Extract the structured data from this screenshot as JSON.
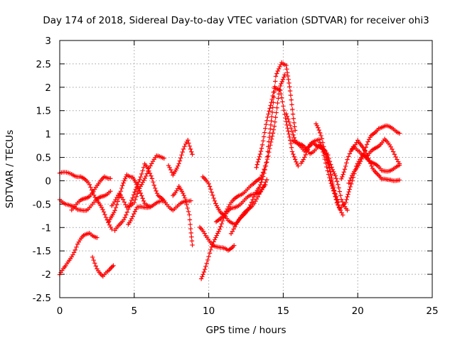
{
  "chart_data": {
    "type": "scatter",
    "title": "Day 174 of 2018, Sidereal Day-to-day VTEC variation (SDTVAR) for receiver ohi3",
    "xlabel": "GPS time / hours",
    "ylabel": "SDTVAR / TECUs",
    "xlim": [
      0,
      25
    ],
    "ylim": [
      -2.5,
      3
    ],
    "xticks": [
      0,
      5,
      10,
      15,
      20,
      25
    ],
    "yticks": [
      -2.5,
      -2,
      -1.5,
      -1,
      -0.5,
      0,
      0.5,
      1,
      1.5,
      2,
      2.5,
      3
    ],
    "grid": true,
    "marker": "plus",
    "color": "#ff0000",
    "series": [
      {
        "name": "track-1",
        "points": [
          [
            0.0,
            0.15
          ],
          [
            0.8,
            0.15
          ],
          [
            1.4,
            0.1
          ],
          [
            2.0,
            -0.1
          ],
          [
            2.6,
            -0.45
          ],
          [
            3.1,
            -0.8
          ],
          [
            3.5,
            -1.0
          ]
        ]
      },
      {
        "name": "track-2",
        "points": [
          [
            0.0,
            -0.4
          ],
          [
            0.6,
            -0.5
          ],
          [
            1.2,
            -0.65
          ],
          [
            1.8,
            -0.6
          ],
          [
            2.4,
            -0.45
          ],
          [
            3.0,
            -0.3
          ],
          [
            3.4,
            -0.2
          ]
        ]
      },
      {
        "name": "track-3",
        "points": [
          [
            0.0,
            -2.0
          ],
          [
            0.4,
            -1.85
          ],
          [
            0.8,
            -1.6
          ],
          [
            1.2,
            -1.35
          ],
          [
            1.6,
            -1.2
          ],
          [
            2.0,
            -1.1
          ],
          [
            2.5,
            -1.2
          ]
        ]
      },
      {
        "name": "track-4",
        "points": [
          [
            2.2,
            -1.65
          ],
          [
            2.5,
            -1.85
          ],
          [
            2.9,
            -2.05
          ],
          [
            3.3,
            -1.95
          ],
          [
            3.6,
            -1.8
          ]
        ]
      },
      {
        "name": "track-5",
        "points": [
          [
            0.8,
            -0.6
          ],
          [
            1.4,
            -0.45
          ],
          [
            2.0,
            -0.3
          ],
          [
            2.6,
            -0.1
          ],
          [
            3.0,
            0.1
          ],
          [
            3.4,
            0.08
          ]
        ]
      },
      {
        "name": "track-6",
        "points": [
          [
            3.3,
            -0.9
          ],
          [
            3.7,
            -0.6
          ],
          [
            4.1,
            -0.25
          ],
          [
            4.5,
            0.15
          ],
          [
            4.9,
            0.1
          ],
          [
            5.3,
            -0.2
          ],
          [
            5.7,
            -0.45
          ],
          [
            6.1,
            -0.55
          ]
        ]
      },
      {
        "name": "track-7",
        "points": [
          [
            3.5,
            -0.5
          ],
          [
            4.0,
            -0.3
          ],
          [
            4.5,
            -0.55
          ],
          [
            5.0,
            -0.45
          ],
          [
            5.5,
            -0.1
          ],
          [
            6.0,
            0.3
          ],
          [
            6.5,
            0.5
          ],
          [
            7.0,
            0.5
          ]
        ]
      },
      {
        "name": "track-8",
        "points": [
          [
            3.7,
            -1.1
          ],
          [
            4.3,
            -0.8
          ],
          [
            4.9,
            -0.4
          ],
          [
            5.3,
            0.0
          ],
          [
            5.7,
            0.35
          ],
          [
            6.2,
            0.05
          ],
          [
            6.6,
            -0.3
          ],
          [
            7.1,
            -0.5
          ]
        ]
      },
      {
        "name": "track-9",
        "points": [
          [
            4.6,
            -0.9
          ],
          [
            5.2,
            -0.6
          ],
          [
            5.8,
            -0.55
          ],
          [
            6.4,
            -0.5
          ],
          [
            7.0,
            -0.45
          ],
          [
            7.6,
            -0.6
          ],
          [
            8.2,
            -0.5
          ],
          [
            8.8,
            -0.4
          ]
        ]
      },
      {
        "name": "track-10",
        "points": [
          [
            7.3,
            0.3
          ],
          [
            7.6,
            0.1
          ],
          [
            8.0,
            0.4
          ],
          [
            8.3,
            0.65
          ],
          [
            8.6,
            0.85
          ],
          [
            8.9,
            0.6
          ]
        ]
      },
      {
        "name": "track-11",
        "points": [
          [
            7.6,
            -0.3
          ],
          [
            8.0,
            -0.1
          ],
          [
            8.4,
            -0.4
          ],
          [
            8.7,
            -0.7
          ],
          [
            8.9,
            -1.4
          ]
        ]
      },
      {
        "name": "track-12",
        "points": [
          [
            9.4,
            -1.0
          ],
          [
            9.8,
            -1.2
          ],
          [
            10.3,
            -1.35
          ],
          [
            10.8,
            -1.45
          ],
          [
            11.3,
            -1.5
          ],
          [
            11.7,
            -1.35
          ]
        ]
      },
      {
        "name": "track-13",
        "points": [
          [
            9.5,
            -2.1
          ],
          [
            9.8,
            -1.8
          ],
          [
            10.2,
            -1.45
          ],
          [
            10.6,
            -1.1
          ],
          [
            11.0,
            -0.8
          ],
          [
            11.5,
            -0.6
          ],
          [
            12.0,
            -0.5
          ],
          [
            12.5,
            -0.4
          ],
          [
            13.0,
            -0.3
          ],
          [
            13.5,
            -0.2
          ],
          [
            13.9,
            0.0
          ]
        ]
      },
      {
        "name": "track-14",
        "points": [
          [
            9.6,
            0.1
          ],
          [
            10.0,
            -0.1
          ],
          [
            10.4,
            -0.4
          ],
          [
            10.8,
            -0.7
          ],
          [
            11.3,
            -0.85
          ],
          [
            11.8,
            -0.9
          ],
          [
            12.3,
            -0.75
          ],
          [
            12.8,
            -0.55
          ],
          [
            13.3,
            -0.35
          ],
          [
            13.8,
            -0.1
          ]
        ]
      },
      {
        "name": "track-15",
        "points": [
          [
            10.5,
            -0.9
          ],
          [
            11.0,
            -0.7
          ],
          [
            11.5,
            -0.5
          ],
          [
            12.0,
            -0.3
          ],
          [
            12.5,
            -0.2
          ],
          [
            13.0,
            -0.1
          ],
          [
            13.5,
            0.1
          ],
          [
            14.0,
            0.5
          ],
          [
            14.4,
            1.2
          ],
          [
            14.8,
            2.0
          ],
          [
            15.1,
            2.3
          ]
        ]
      },
      {
        "name": "track-16",
        "points": [
          [
            11.5,
            -1.1
          ],
          [
            12.2,
            -0.8
          ],
          [
            12.8,
            -0.5
          ],
          [
            13.4,
            -0.15
          ],
          [
            13.9,
            0.4
          ],
          [
            14.2,
            1.3
          ],
          [
            14.5,
            2.2
          ],
          [
            14.9,
            2.55
          ],
          [
            15.2,
            2.5
          ],
          [
            15.5,
            1.8
          ],
          [
            15.8,
            1.1
          ]
        ]
      },
      {
        "name": "track-17",
        "points": [
          [
            13.2,
            0.25
          ],
          [
            13.6,
            0.8
          ],
          [
            14.0,
            1.4
          ],
          [
            14.4,
            2.0
          ],
          [
            14.8,
            1.9
          ],
          [
            15.2,
            1.3
          ],
          [
            15.6,
            0.6
          ],
          [
            16.0,
            0.35
          ]
        ]
      },
      {
        "name": "track-18",
        "points": [
          [
            15.6,
            0.9
          ],
          [
            16.2,
            0.75
          ],
          [
            16.8,
            0.6
          ],
          [
            17.4,
            0.75
          ],
          [
            18.0,
            0.55
          ],
          [
            18.5,
            0.1
          ],
          [
            18.9,
            -0.4
          ],
          [
            19.3,
            -0.6
          ]
        ]
      },
      {
        "name": "track-19",
        "points": [
          [
            15.2,
            1.4
          ],
          [
            15.8,
            0.9
          ],
          [
            16.4,
            0.6
          ],
          [
            17.0,
            0.85
          ],
          [
            17.6,
            0.65
          ],
          [
            18.1,
            0.1
          ],
          [
            18.6,
            -0.5
          ],
          [
            19.0,
            -0.7
          ]
        ]
      },
      {
        "name": "track-20",
        "points": [
          [
            16.2,
            0.4
          ],
          [
            16.8,
            0.75
          ],
          [
            17.4,
            0.9
          ],
          [
            17.9,
            0.55
          ],
          [
            18.3,
            -0.05
          ],
          [
            18.7,
            -0.45
          ]
        ]
      },
      {
        "name": "track-21",
        "points": [
          [
            17.2,
            1.2
          ],
          [
            17.6,
            0.9
          ],
          [
            18.0,
            0.4
          ],
          [
            18.4,
            -0.2
          ],
          [
            18.8,
            -0.6
          ],
          [
            19.2,
            -0.5
          ],
          [
            19.5,
            -0.1
          ],
          [
            19.9,
            0.3
          ],
          [
            20.4,
            0.55
          ],
          [
            21.0,
            0.4
          ],
          [
            21.6,
            0.2
          ],
          [
            22.2,
            0.25
          ],
          [
            22.8,
            0.3
          ]
        ]
      },
      {
        "name": "track-22",
        "points": [
          [
            18.9,
            0.05
          ],
          [
            19.3,
            0.45
          ],
          [
            19.7,
            0.7
          ],
          [
            20.1,
            0.65
          ],
          [
            20.6,
            0.5
          ],
          [
            21.2,
            0.7
          ],
          [
            21.8,
            0.9
          ],
          [
            22.3,
            0.65
          ],
          [
            22.8,
            0.4
          ]
        ]
      },
      {
        "name": "track-23",
        "points": [
          [
            19.4,
            -0.05
          ],
          [
            19.9,
            0.25
          ],
          [
            20.4,
            0.6
          ],
          [
            20.9,
            0.95
          ],
          [
            21.4,
            1.15
          ],
          [
            21.9,
            1.15
          ],
          [
            22.4,
            1.1
          ],
          [
            22.8,
            1.05
          ]
        ]
      },
      {
        "name": "track-24",
        "points": [
          [
            19.6,
            0.65
          ],
          [
            20.0,
            0.9
          ],
          [
            20.5,
            0.6
          ],
          [
            21.0,
            0.3
          ],
          [
            21.6,
            0.0
          ],
          [
            22.2,
            0.05
          ],
          [
            22.8,
            0.0
          ]
        ]
      }
    ]
  }
}
